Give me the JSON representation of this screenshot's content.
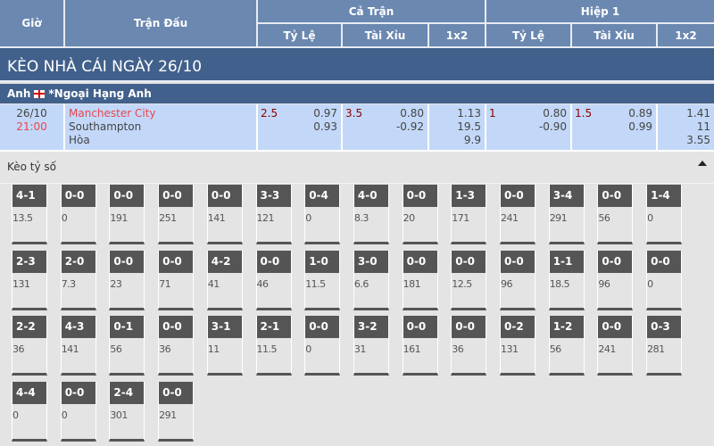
{
  "header": {
    "gio": "Giờ",
    "tran_dau": "Trận Đấu",
    "ca_tran": "Cả Trận",
    "hiep1": "Hiệp 1",
    "ty_le": "Tỷ Lệ",
    "tai_xiu": "Tài Xỉu",
    "x12": "1x2"
  },
  "title": "KÈO NHÀ CÁI NGÀY 26/10",
  "league": {
    "country": "Anh",
    "flag_icon": "england-flag-icon",
    "name": "*Ngoại Hạng Anh"
  },
  "match": {
    "date": "26/10",
    "time": "21:00",
    "home": "Manchester City",
    "away": "Southampton",
    "draw": "Hòa",
    "ft_handicap": {
      "line": "2.5",
      "home": "0.97",
      "away": "0.93"
    },
    "ft_ou": {
      "line": "3.5",
      "over": "0.80",
      "under": "-0.92"
    },
    "ft_1x2": {
      "home": "1.13",
      "away": "19.5",
      "draw": "9.9"
    },
    "h1_handicap": {
      "line": "1",
      "home": "0.80",
      "away": "-0.90"
    },
    "h1_ou": {
      "line": "1.5",
      "over": "0.89",
      "under": "0.99"
    },
    "h1_1x2": {
      "home": "1.41",
      "away": "11",
      "draw": "3.55"
    }
  },
  "correct_score": {
    "label": "Kèo tỷ số",
    "collapse_icon": "caret-up-icon",
    "cells": [
      {
        "score": "4-1",
        "odds": "13.5"
      },
      {
        "score": "0-0",
        "odds": "0"
      },
      {
        "score": "0-0",
        "odds": "191"
      },
      {
        "score": "0-0",
        "odds": "251"
      },
      {
        "score": "0-0",
        "odds": "141"
      },
      {
        "score": "3-3",
        "odds": "121"
      },
      {
        "score": "0-4",
        "odds": "0"
      },
      {
        "score": "4-0",
        "odds": "8.3"
      },
      {
        "score": "0-0",
        "odds": "20"
      },
      {
        "score": "1-3",
        "odds": "171"
      },
      {
        "score": "0-0",
        "odds": "241"
      },
      {
        "score": "3-4",
        "odds": "291"
      },
      {
        "score": "0-0",
        "odds": "56"
      },
      {
        "score": "1-4",
        "odds": "0"
      },
      {
        "score": "2-3",
        "odds": "131"
      },
      {
        "score": "2-0",
        "odds": "7.3"
      },
      {
        "score": "0-0",
        "odds": "23"
      },
      {
        "score": "0-0",
        "odds": "71"
      },
      {
        "score": "4-2",
        "odds": "41"
      },
      {
        "score": "0-0",
        "odds": "46"
      },
      {
        "score": "1-0",
        "odds": "11.5"
      },
      {
        "score": "3-0",
        "odds": "6.6"
      },
      {
        "score": "0-0",
        "odds": "181"
      },
      {
        "score": "0-0",
        "odds": "12.5"
      },
      {
        "score": "0-0",
        "odds": "96"
      },
      {
        "score": "1-1",
        "odds": "18.5"
      },
      {
        "score": "0-0",
        "odds": "96"
      },
      {
        "score": "0-0",
        "odds": "0"
      },
      {
        "score": "2-2",
        "odds": "36"
      },
      {
        "score": "4-3",
        "odds": "141"
      },
      {
        "score": "0-1",
        "odds": "56"
      },
      {
        "score": "0-0",
        "odds": "36"
      },
      {
        "score": "3-1",
        "odds": "11"
      },
      {
        "score": "2-1",
        "odds": "11.5"
      },
      {
        "score": "0-0",
        "odds": "0"
      },
      {
        "score": "3-2",
        "odds": "31"
      },
      {
        "score": "0-0",
        "odds": "161"
      },
      {
        "score": "0-0",
        "odds": "36"
      },
      {
        "score": "0-2",
        "odds": "131"
      },
      {
        "score": "1-2",
        "odds": "56"
      },
      {
        "score": "0-0",
        "odds": "241"
      },
      {
        "score": "0-3",
        "odds": "281"
      },
      {
        "score": "4-4",
        "odds": "0"
      },
      {
        "score": "0-0",
        "odds": "0"
      },
      {
        "score": "2-4",
        "odds": "301"
      },
      {
        "score": "0-0",
        "odds": "291"
      }
    ]
  }
}
